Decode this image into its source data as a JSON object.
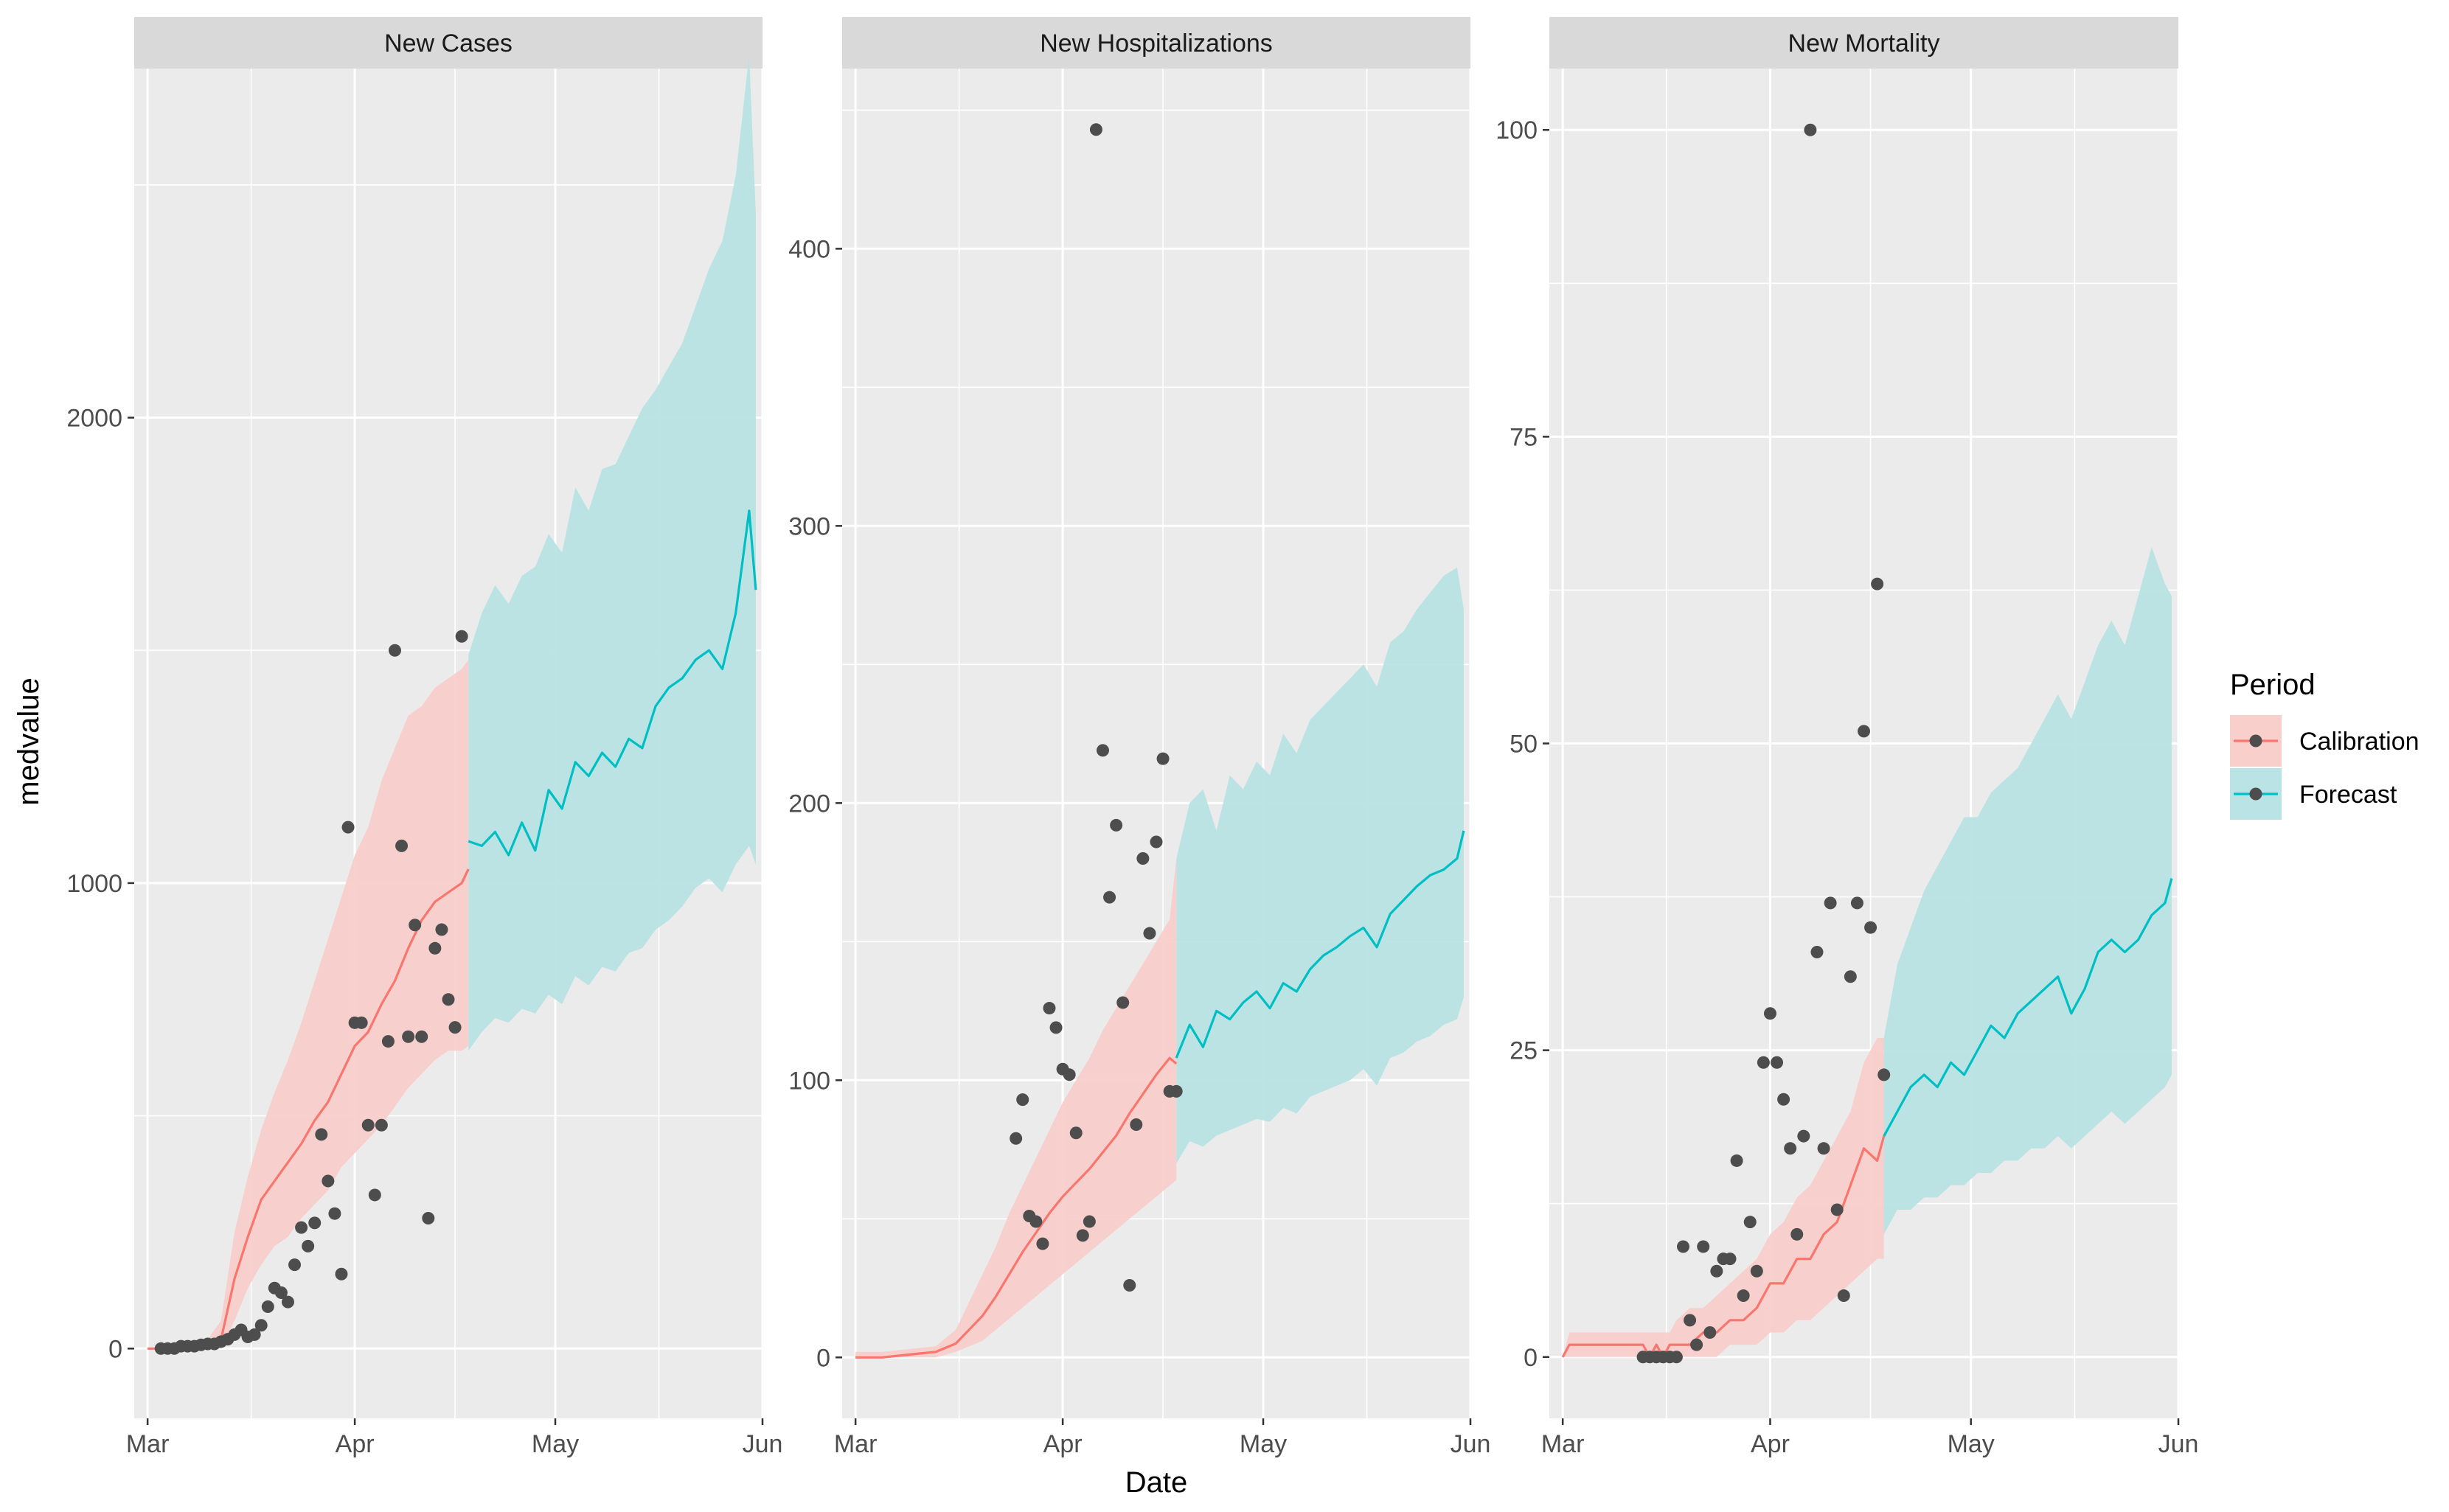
{
  "figure": {
    "xlabel": "Date",
    "ylabel": "medvalue",
    "legend_title": "Period"
  },
  "legend": {
    "position": "right",
    "items": [
      {
        "label": "Calibration",
        "color": "#F8766D",
        "band": "#F8CFCB"
      },
      {
        "label": "Forecast",
        "color": "#00BFC4",
        "band": "#B9E3E4"
      }
    ]
  },
  "colors": {
    "panel_bg": "#EBEBEB",
    "strip_bg": "#D9D9D9",
    "grid": "#FFFFFF",
    "points": "#4D4D4D",
    "calibration": "#F8766D",
    "forecast": "#00BFC4",
    "calibration_band": "#F8CFCB",
    "forecast_band": "#B9E3E4"
  },
  "chart_data": [
    {
      "type": "line",
      "title": "New Cases",
      "xlim": [
        "2020-02-28",
        "2020-06-01"
      ],
      "ylim": [
        -150,
        2750
      ],
      "xticks": [
        "2020-03-01",
        "2020-04-01",
        "2020-05-01",
        "2020-06-01"
      ],
      "xtick_labels": [
        "Mar",
        "Apr",
        "May",
        "Jun"
      ],
      "yticks": [
        0,
        1000,
        2000
      ],
      "ytick_labels": [
        "0",
        "1000",
        "2000"
      ],
      "grid": true,
      "series": [
        {
          "name": "Calibration",
          "x": [
            "2020-03-01",
            "2020-03-05",
            "2020-03-09",
            "2020-03-12",
            "2020-03-14",
            "2020-03-16",
            "2020-03-18",
            "2020-03-20",
            "2020-03-22",
            "2020-03-24",
            "2020-03-26",
            "2020-03-28",
            "2020-03-30",
            "2020-04-01",
            "2020-04-03",
            "2020-04-05",
            "2020-04-07",
            "2020-04-09",
            "2020-04-11",
            "2020-04-13",
            "2020-04-15",
            "2020-04-17",
            "2020-04-18"
          ],
          "values": [
            0,
            0,
            0,
            20,
            150,
            240,
            320,
            360,
            400,
            440,
            490,
            530,
            590,
            650,
            680,
            740,
            790,
            860,
            920,
            960,
            980,
            1000,
            1030
          ],
          "upper": [
            0,
            0,
            0,
            60,
            250,
            370,
            470,
            550,
            620,
            700,
            790,
            880,
            970,
            1060,
            1120,
            1220,
            1290,
            1360,
            1380,
            1420,
            1440,
            1460,
            1480
          ],
          "lower": [
            0,
            0,
            0,
            0,
            60,
            130,
            180,
            220,
            240,
            280,
            310,
            340,
            390,
            420,
            450,
            480,
            520,
            560,
            590,
            620,
            640,
            640,
            650
          ]
        },
        {
          "name": "Forecast",
          "x": [
            "2020-04-18",
            "2020-04-20",
            "2020-04-22",
            "2020-04-24",
            "2020-04-26",
            "2020-04-28",
            "2020-04-30",
            "2020-05-02",
            "2020-05-04",
            "2020-05-06",
            "2020-05-08",
            "2020-05-10",
            "2020-05-12",
            "2020-05-14",
            "2020-05-16",
            "2020-05-18",
            "2020-05-20",
            "2020-05-22",
            "2020-05-24",
            "2020-05-26",
            "2020-05-28",
            "2020-05-30",
            "2020-05-31"
          ],
          "values": [
            1090,
            1080,
            1110,
            1060,
            1130,
            1070,
            1200,
            1160,
            1260,
            1230,
            1280,
            1250,
            1310,
            1290,
            1380,
            1420,
            1440,
            1480,
            1500,
            1460,
            1580,
            1800,
            1630
          ],
          "upper": [
            1490,
            1580,
            1640,
            1600,
            1660,
            1680,
            1750,
            1710,
            1850,
            1800,
            1890,
            1900,
            1960,
            2020,
            2060,
            2110,
            2160,
            2240,
            2320,
            2380,
            2520,
            2780,
            2440
          ],
          "lower": [
            640,
            680,
            710,
            700,
            730,
            720,
            760,
            740,
            800,
            780,
            820,
            810,
            850,
            860,
            900,
            920,
            950,
            990,
            1010,
            980,
            1040,
            1080,
            1040
          ]
        }
      ],
      "points": {
        "x": [
          "2020-03-03",
          "2020-03-04",
          "2020-03-05",
          "2020-03-06",
          "2020-03-07",
          "2020-03-08",
          "2020-03-09",
          "2020-03-10",
          "2020-03-11",
          "2020-03-12",
          "2020-03-13",
          "2020-03-14",
          "2020-03-15",
          "2020-03-16",
          "2020-03-17",
          "2020-03-18",
          "2020-03-19",
          "2020-03-20",
          "2020-03-21",
          "2020-03-22",
          "2020-03-23",
          "2020-03-24",
          "2020-03-25",
          "2020-03-26",
          "2020-03-27",
          "2020-03-28",
          "2020-03-29",
          "2020-03-30",
          "2020-03-31",
          "2020-04-01",
          "2020-04-02",
          "2020-04-03",
          "2020-04-04",
          "2020-04-05",
          "2020-04-06",
          "2020-04-07",
          "2020-04-08",
          "2020-04-09",
          "2020-04-10",
          "2020-04-11",
          "2020-04-12",
          "2020-04-13",
          "2020-04-14",
          "2020-04-15",
          "2020-04-16",
          "2020-04-17"
        ],
        "y": [
          0,
          0,
          0,
          5,
          5,
          5,
          8,
          10,
          10,
          15,
          20,
          30,
          40,
          25,
          30,
          50,
          90,
          130,
          120,
          100,
          180,
          260,
          220,
          270,
          460,
          360,
          290,
          160,
          1120,
          700,
          700,
          480,
          330,
          480,
          660,
          1500,
          1080,
          670,
          910,
          670,
          280,
          860,
          900,
          750,
          690,
          1530
        ]
      }
    },
    {
      "type": "line",
      "title": "New Hospitalizations",
      "xlim": [
        "2020-02-28",
        "2020-06-01"
      ],
      "ylim": [
        -22,
        465
      ],
      "xticks": [
        "2020-03-01",
        "2020-04-01",
        "2020-05-01",
        "2020-06-01"
      ],
      "xtick_labels": [
        "Mar",
        "Apr",
        "May",
        "Jun"
      ],
      "yticks": [
        0,
        100,
        200,
        300,
        400
      ],
      "ytick_labels": [
        "0",
        "100",
        "200",
        "300",
        "400"
      ],
      "grid": true,
      "series": [
        {
          "name": "Calibration",
          "x": [
            "2020-03-01",
            "2020-03-05",
            "2020-03-09",
            "2020-03-13",
            "2020-03-16",
            "2020-03-18",
            "2020-03-20",
            "2020-03-22",
            "2020-03-24",
            "2020-03-26",
            "2020-03-28",
            "2020-03-30",
            "2020-04-01",
            "2020-04-03",
            "2020-04-05",
            "2020-04-07",
            "2020-04-09",
            "2020-04-11",
            "2020-04-13",
            "2020-04-15",
            "2020-04-17",
            "2020-04-18"
          ],
          "values": [
            0,
            0,
            1,
            2,
            5,
            10,
            15,
            22,
            30,
            38,
            45,
            52,
            58,
            63,
            68,
            74,
            80,
            88,
            95,
            102,
            108,
            106
          ],
          "upper": [
            2,
            2,
            3,
            4,
            10,
            20,
            30,
            40,
            52,
            62,
            72,
            82,
            92,
            100,
            108,
            118,
            126,
            134,
            142,
            150,
            158,
            180
          ],
          "lower": [
            0,
            0,
            0,
            0,
            2,
            4,
            6,
            10,
            14,
            18,
            22,
            26,
            30,
            34,
            38,
            42,
            46,
            50,
            54,
            58,
            62,
            64
          ]
        },
        {
          "name": "Forecast",
          "x": [
            "2020-04-18",
            "2020-04-20",
            "2020-04-22",
            "2020-04-24",
            "2020-04-26",
            "2020-04-28",
            "2020-04-30",
            "2020-05-02",
            "2020-05-04",
            "2020-05-06",
            "2020-05-08",
            "2020-05-10",
            "2020-05-12",
            "2020-05-14",
            "2020-05-16",
            "2020-05-18",
            "2020-05-20",
            "2020-05-22",
            "2020-05-24",
            "2020-05-26",
            "2020-05-28",
            "2020-05-30",
            "2020-05-31"
          ],
          "values": [
            108,
            120,
            112,
            125,
            122,
            128,
            132,
            126,
            135,
            132,
            140,
            145,
            148,
            152,
            155,
            148,
            160,
            165,
            170,
            174,
            176,
            180,
            190
          ],
          "upper": [
            180,
            200,
            205,
            190,
            210,
            205,
            215,
            210,
            225,
            218,
            230,
            235,
            240,
            245,
            250,
            242,
            258,
            262,
            270,
            276,
            282,
            285,
            270
          ],
          "lower": [
            70,
            78,
            76,
            80,
            82,
            84,
            86,
            85,
            90,
            88,
            94,
            96,
            98,
            100,
            104,
            98,
            108,
            110,
            114,
            116,
            120,
            122,
            130
          ]
        }
      ],
      "points": {
        "x": [
          "2020-03-25",
          "2020-03-26",
          "2020-03-27",
          "2020-03-28",
          "2020-03-29",
          "2020-03-30",
          "2020-03-31",
          "2020-04-01",
          "2020-04-02",
          "2020-04-03",
          "2020-04-04",
          "2020-04-05",
          "2020-04-06",
          "2020-04-07",
          "2020-04-08",
          "2020-04-09",
          "2020-04-10",
          "2020-04-11",
          "2020-04-12",
          "2020-04-13",
          "2020-04-14",
          "2020-04-15",
          "2020-04-16",
          "2020-04-17",
          "2020-04-18"
        ],
        "y": [
          79,
          93,
          51,
          49,
          41,
          126,
          119,
          104,
          102,
          81,
          44,
          49,
          443,
          219,
          166,
          192,
          128,
          26,
          84,
          180,
          153,
          186,
          216,
          96,
          96
        ]
      }
    },
    {
      "type": "line",
      "title": "New Mortality",
      "xlim": [
        "2020-02-28",
        "2020-06-01"
      ],
      "ylim": [
        -5,
        105
      ],
      "xticks": [
        "2020-03-01",
        "2020-04-01",
        "2020-05-01",
        "2020-06-01"
      ],
      "xtick_labels": [
        "Mar",
        "Apr",
        "May",
        "Jun"
      ],
      "yticks": [
        0,
        25,
        50,
        75,
        100
      ],
      "ytick_labels": [
        "0",
        "25",
        "50",
        "75",
        "100"
      ],
      "grid": true,
      "series": [
        {
          "name": "Calibration",
          "x": [
            "2020-03-01",
            "2020-03-02",
            "2020-03-05",
            "2020-03-09",
            "2020-03-13",
            "2020-03-14",
            "2020-03-15",
            "2020-03-16",
            "2020-03-17",
            "2020-03-18",
            "2020-03-20",
            "2020-03-22",
            "2020-03-24",
            "2020-03-26",
            "2020-03-28",
            "2020-03-30",
            "2020-04-01",
            "2020-04-03",
            "2020-04-05",
            "2020-04-07",
            "2020-04-09",
            "2020-04-11",
            "2020-04-13",
            "2020-04-15",
            "2020-04-17",
            "2020-04-18"
          ],
          "values": [
            0,
            1,
            1,
            1,
            1,
            0,
            1,
            0,
            1,
            1,
            1,
            2,
            2,
            3,
            3,
            4,
            6,
            6,
            8,
            8,
            10,
            11,
            14,
            17,
            16,
            18
          ],
          "upper": [
            0,
            2,
            2,
            2,
            2,
            2,
            2,
            2,
            2,
            3,
            4,
            4,
            5,
            6,
            7,
            8,
            10,
            11,
            13,
            14,
            16,
            18,
            20,
            24,
            26,
            26
          ],
          "lower": [
            0,
            0,
            0,
            0,
            0,
            0,
            0,
            0,
            0,
            0,
            0,
            0,
            0,
            1,
            1,
            1,
            2,
            2,
            3,
            3,
            4,
            5,
            6,
            7,
            8,
            8
          ]
        },
        {
          "name": "Forecast",
          "x": [
            "2020-04-18",
            "2020-04-20",
            "2020-04-22",
            "2020-04-24",
            "2020-04-26",
            "2020-04-28",
            "2020-04-30",
            "2020-05-02",
            "2020-05-04",
            "2020-05-06",
            "2020-05-08",
            "2020-05-10",
            "2020-05-12",
            "2020-05-14",
            "2020-05-16",
            "2020-05-18",
            "2020-05-20",
            "2020-05-22",
            "2020-05-24",
            "2020-05-26",
            "2020-05-28",
            "2020-05-30",
            "2020-05-31"
          ],
          "values": [
            18,
            20,
            22,
            23,
            22,
            24,
            23,
            25,
            27,
            26,
            28,
            29,
            30,
            31,
            28,
            30,
            33,
            34,
            33,
            34,
            36,
            37,
            39
          ],
          "upper": [
            26,
            32,
            35,
            38,
            40,
            42,
            44,
            44,
            46,
            47,
            48,
            50,
            52,
            54,
            52,
            55,
            58,
            60,
            58,
            62,
            66,
            63,
            62
          ],
          "lower": [
            10,
            12,
            12,
            13,
            13,
            14,
            14,
            15,
            15,
            16,
            16,
            17,
            17,
            18,
            17,
            18,
            19,
            20,
            19,
            20,
            21,
            22,
            23
          ]
        }
      ],
      "points": {
        "x": [
          "2020-03-13",
          "2020-03-14",
          "2020-03-15",
          "2020-03-16",
          "2020-03-17",
          "2020-03-18",
          "2020-03-19",
          "2020-03-20",
          "2020-03-21",
          "2020-03-22",
          "2020-03-23",
          "2020-03-24",
          "2020-03-25",
          "2020-03-26",
          "2020-03-27",
          "2020-03-28",
          "2020-03-29",
          "2020-03-30",
          "2020-03-31",
          "2020-04-01",
          "2020-04-02",
          "2020-04-03",
          "2020-04-04",
          "2020-04-05",
          "2020-04-06",
          "2020-04-07",
          "2020-04-08",
          "2020-04-09",
          "2020-04-10",
          "2020-04-11",
          "2020-04-12",
          "2020-04-13",
          "2020-04-14",
          "2020-04-15",
          "2020-04-16",
          "2020-04-17",
          "2020-04-18"
        ],
        "y": [
          0,
          0,
          0,
          0,
          0,
          0,
          9,
          3,
          1,
          9,
          2,
          7,
          8,
          8,
          16,
          5,
          11,
          7,
          24,
          28,
          24,
          21,
          17,
          10,
          18,
          100,
          33,
          17,
          37,
          12,
          5,
          31,
          37,
          51,
          35,
          63,
          23
        ]
      }
    }
  ]
}
